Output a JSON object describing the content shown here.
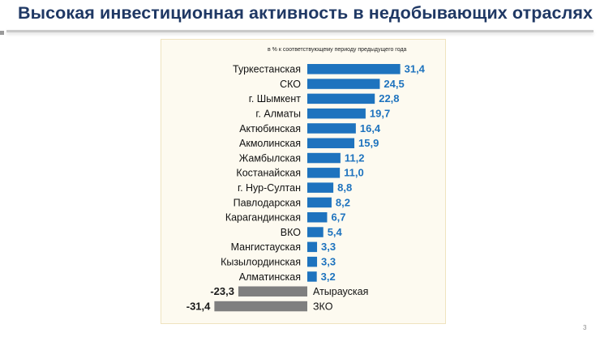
{
  "slide": {
    "title": "Высокая инвестиционная активность в недобывающих отраслях",
    "page_number": "3"
  },
  "chart_data": {
    "type": "bar",
    "orientation": "horizontal",
    "subtitle": "в % к соответствующему периоду предыдущего года",
    "categories": [
      "Туркестанская",
      "СКО",
      "г. Шымкент",
      "г. Алматы",
      "Актюбинская",
      "Акмолинская",
      "Жамбылская",
      "Костанайская",
      "г. Нур-Султан",
      "Павлодарская",
      "Карагандинская",
      "ВКО",
      "Мангистауская",
      "Кызылординская",
      "Алматинская",
      "Атырауская",
      "ЗКО"
    ],
    "values": [
      31.4,
      24.5,
      22.8,
      19.7,
      16.4,
      15.9,
      11.2,
      11.0,
      8.8,
      8.2,
      6.7,
      5.4,
      3.3,
      3.3,
      3.2,
      -23.3,
      -31.4
    ],
    "value_labels": [
      "31,4",
      "24,5",
      "22,8",
      "19,7",
      "16,4",
      "15,9",
      "11,2",
      "11,0",
      "8,8",
      "8,2",
      "6,7",
      "5,4",
      "3,3",
      "3,3",
      "3,2",
      "-23,3",
      "-31,4"
    ],
    "colors": {
      "positive": "#1e73be",
      "negative": "#7f7f7f",
      "positive_label": "#1e73be",
      "negative_label": "#1a1a1a"
    },
    "grid": false,
    "legend": "none"
  }
}
